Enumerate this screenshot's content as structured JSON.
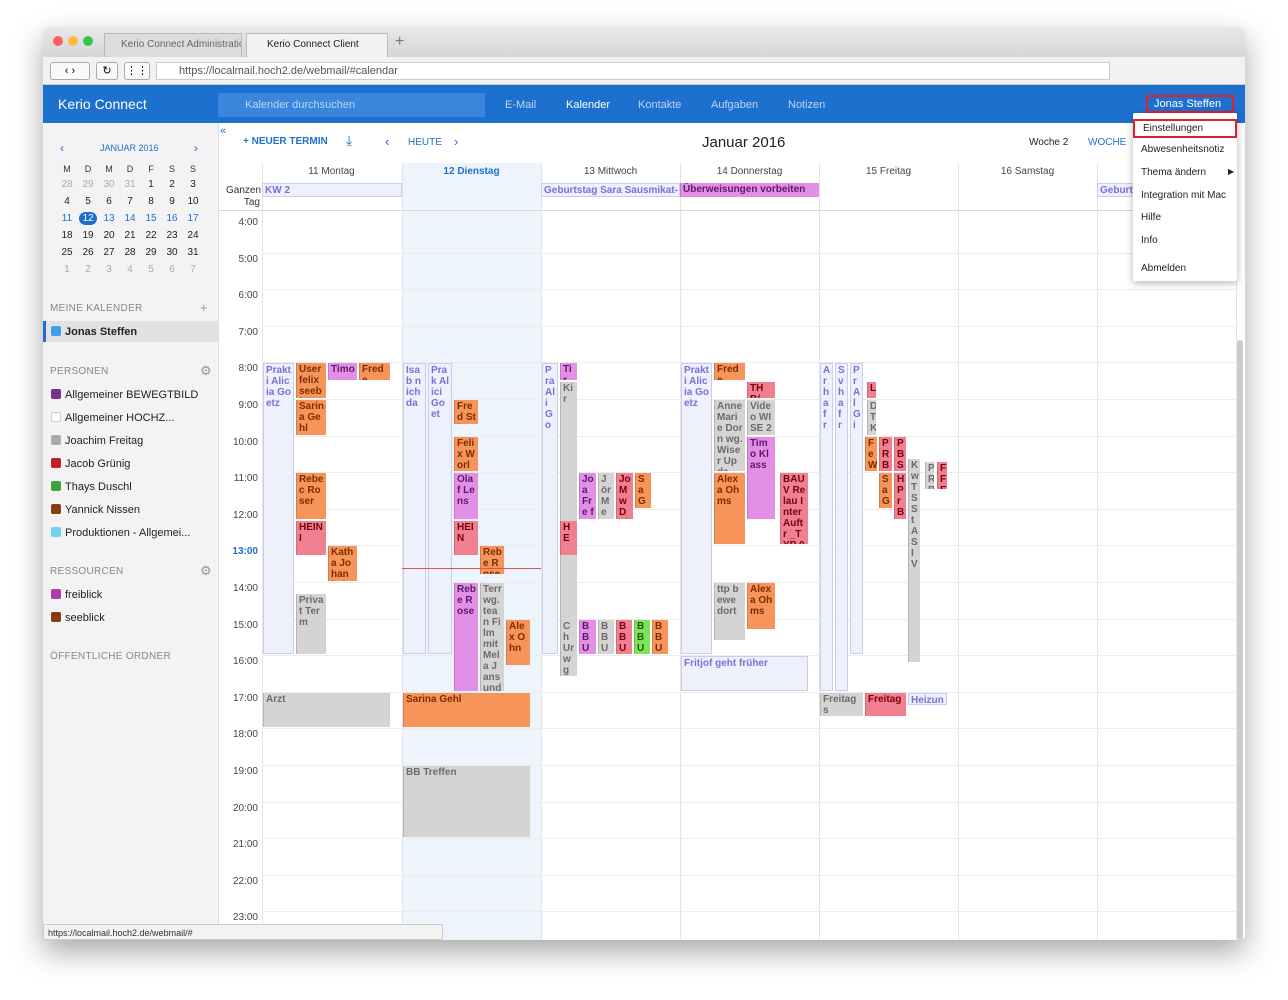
{
  "browser": {
    "tabs": [
      "Kerio Connect Administratio",
      "Kerio Connect Client"
    ],
    "url": "https://localmail.hoch2.de/webmail/#calendar",
    "status": "https://localmail.hoch2.de/webmail/#"
  },
  "header": {
    "brand": "Kerio Connect",
    "search": "Kalender durchsuchen",
    "nav": [
      "E-Mail",
      "Kalender",
      "Kontakte",
      "Aufgaben",
      "Notizen"
    ],
    "user": "Jonas Steffen"
  },
  "mini_calendar": {
    "month": "JANUAR 2016",
    "weekdays": [
      "M",
      "D",
      "M",
      "D",
      "F",
      "S",
      "S"
    ],
    "weeks": [
      [
        28,
        29,
        30,
        31,
        1,
        2,
        3
      ],
      [
        4,
        5,
        6,
        7,
        8,
        9,
        10
      ],
      [
        11,
        12,
        13,
        14,
        15,
        16,
        17
      ],
      [
        18,
        19,
        20,
        21,
        22,
        23,
        24
      ],
      [
        25,
        26,
        27,
        28,
        29,
        30,
        31
      ],
      [
        1,
        2,
        3,
        4,
        5,
        6,
        7
      ]
    ]
  },
  "sidebar": {
    "my_calendars": {
      "title": "MEINE KALENDER",
      "items": [
        "Jonas Steffen"
      ]
    },
    "people": {
      "title": "PERSONEN",
      "items": [
        "Allgemeiner BEWEGTBILD",
        "Allgemeiner HOCHZ...",
        "Joachim Freitag",
        "Jacob Grünig",
        "Thays Duschl",
        "Yannick Nissen",
        "Produktionen - Allgemei..."
      ]
    },
    "resources": {
      "title": "RESSOURCEN",
      "items": [
        "freiblick",
        "seeblick"
      ]
    },
    "public": "ÖFFENTLICHE ORDNER"
  },
  "toolbar": {
    "new": "NEUER TERMIN",
    "today": "HEUTE",
    "title": "Januar 2016",
    "week_number": "Woche 2",
    "view": "WOCHE"
  },
  "days": [
    "11 Montag",
    "12 Dienstag",
    "13 Mittwoch",
    "14 Donnerstag",
    "15 Freitag",
    "16 Samstag"
  ],
  "all_day_label": "Ganzen Tag",
  "hours": [
    "4:00",
    "5:00",
    "6:00",
    "7:00",
    "8:00",
    "9:00",
    "10:00",
    "11:00",
    "12:00",
    "13:00",
    "14:00",
    "15:00",
    "16:00",
    "17:00",
    "18:00",
    "19:00",
    "20:00",
    "21:00",
    "22:00",
    "23:00"
  ],
  "all_day_events": [
    "KW 2",
    "Geburtstag Sara Sausmikat-",
    "Überweisungen vorbeiten",
    "Geburt"
  ],
  "events": [
    "Prakti Alicia Goetz",
    "User felix seebl",
    "Timo",
    "Frede",
    "Sarina Gehl",
    "Rebec Roser",
    "HEINI",
    "Katha Johan bei",
    "Privat Term",
    "Arzt",
    "Isab nich da",
    "Prak Alici Goet",
    "Fred Stie",
    "Felix Worl seeb",
    "Olaf Lens",
    "HEIN",
    "Rebe Rose",
    "Rebe Rose",
    "Terr wg. tean Film mit Mela Jans und Leif Tiec",
    "Alex Ohn",
    "Sarina Gehl",
    "BB Treffen",
    "Pra Ali Go",
    "Tir",
    "Kir",
    "Joa Fre fre",
    "Jör Me wg Dä Fil",
    "Jo M w D Fi",
    "Sa Ge",
    "HE",
    "Ch Ur wg Fil Me",
    "BB Up fre",
    "BB Up fre",
    "BB Up fre",
    "BB Up fre",
    "BB Up fre",
    "Prakti Alicia Goetz",
    "Frede",
    "THB/",
    "Anne Marie Dorn wg. Wiser Upda",
    "Video WISE 2 ev.",
    "Timo Klass",
    "BAUV Relau Inter Auftr _TYP 0611",
    "Alexa Ohms",
    "ttp bewe dort",
    "Alexa Ohms",
    "Fritjof geht früher",
    "Ar ha fr",
    "Sv ha fr",
    "Pr Al Gi",
    "L",
    "D T K",
    "Fe W Be",
    "P R B",
    "P B S",
    "Sa G",
    "H Pr Be Se",
    "K w T S St A S IV",
    "P R B",
    "F F E",
    "Freitags",
    "Freitag",
    "Heizun"
  ],
  "menu": [
    "Einstellungen",
    "Abwesenheitsnotiz",
    "Thema ändern",
    "Integration mit Mac",
    "Hilfe",
    "Info",
    "Abmelden"
  ]
}
